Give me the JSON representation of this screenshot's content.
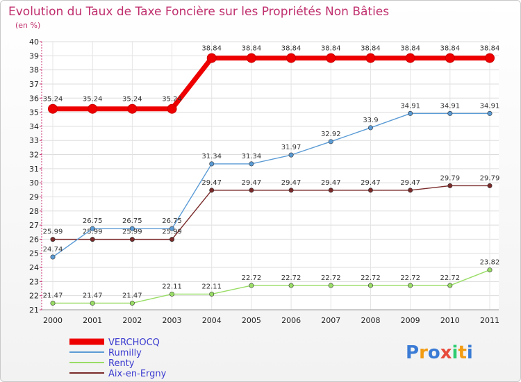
{
  "chart_data": {
    "type": "line",
    "title": "Evolution du Taux de Taxe Foncière sur les Propriétés Non Bâties",
    "subtitle": "(en %)",
    "xlabel": "",
    "ylabel": "",
    "x": [
      "2000",
      "2001",
      "2002",
      "2003",
      "2004",
      "2005",
      "2006",
      "2007",
      "2008",
      "2009",
      "2010",
      "2011"
    ],
    "ylim": [
      21,
      40
    ],
    "yticks": [
      21,
      22,
      23,
      24,
      25,
      26,
      27,
      28,
      29,
      30,
      31,
      32,
      33,
      34,
      35,
      36,
      37,
      38,
      39,
      40
    ],
    "grid": true,
    "legend_position": "bottom-left",
    "series": [
      {
        "name": "VERCHOCQ",
        "color": "#ee0000",
        "values": [
          35.24,
          35.24,
          35.24,
          35.24,
          38.84,
          38.84,
          38.84,
          38.84,
          38.84,
          38.84,
          38.84,
          38.84
        ],
        "labels": [
          "35.24",
          "35.24",
          "35.24",
          "35.24",
          "38.84",
          "38.84",
          "38.84",
          "38.84",
          "38.84",
          "38.84",
          "38.84",
          "38.84"
        ]
      },
      {
        "name": "Rumilly",
        "color": "#5b9bd5",
        "values": [
          24.74,
          26.75,
          26.75,
          26.75,
          31.34,
          31.34,
          31.97,
          32.92,
          33.9,
          34.91,
          34.91,
          34.91
        ],
        "labels": [
          "24.74",
          "26.75",
          "26.75",
          "26.75",
          "31.34",
          "31.34",
          "31.97",
          "32.92",
          "33.9",
          "34.91",
          "34.91",
          "34.91"
        ]
      },
      {
        "name": "Renty",
        "color": "#99dd66",
        "values": [
          21.47,
          21.47,
          21.47,
          22.11,
          22.11,
          22.72,
          22.72,
          22.72,
          22.72,
          22.72,
          22.72,
          23.82
        ],
        "labels": [
          "21.47",
          "21.47",
          "21.47",
          "22.11",
          "22.11",
          "22.72",
          "22.72",
          "22.72",
          "22.72",
          "22.72",
          "22.72",
          "23.82"
        ]
      },
      {
        "name": "Aix-en-Ergny",
        "color": "#7a2a2a",
        "values": [
          25.99,
          25.99,
          25.99,
          25.99,
          29.47,
          29.47,
          29.47,
          29.47,
          29.47,
          29.47,
          29.79,
          29.79
        ],
        "labels": [
          "25.99",
          "25.99",
          "25.99",
          "25.99",
          "29.47",
          "29.47",
          "29.47",
          "29.47",
          "29.47",
          "29.47",
          "29.79",
          "29.79"
        ]
      }
    ]
  },
  "branding": {
    "logo_text": "Proxiti"
  }
}
